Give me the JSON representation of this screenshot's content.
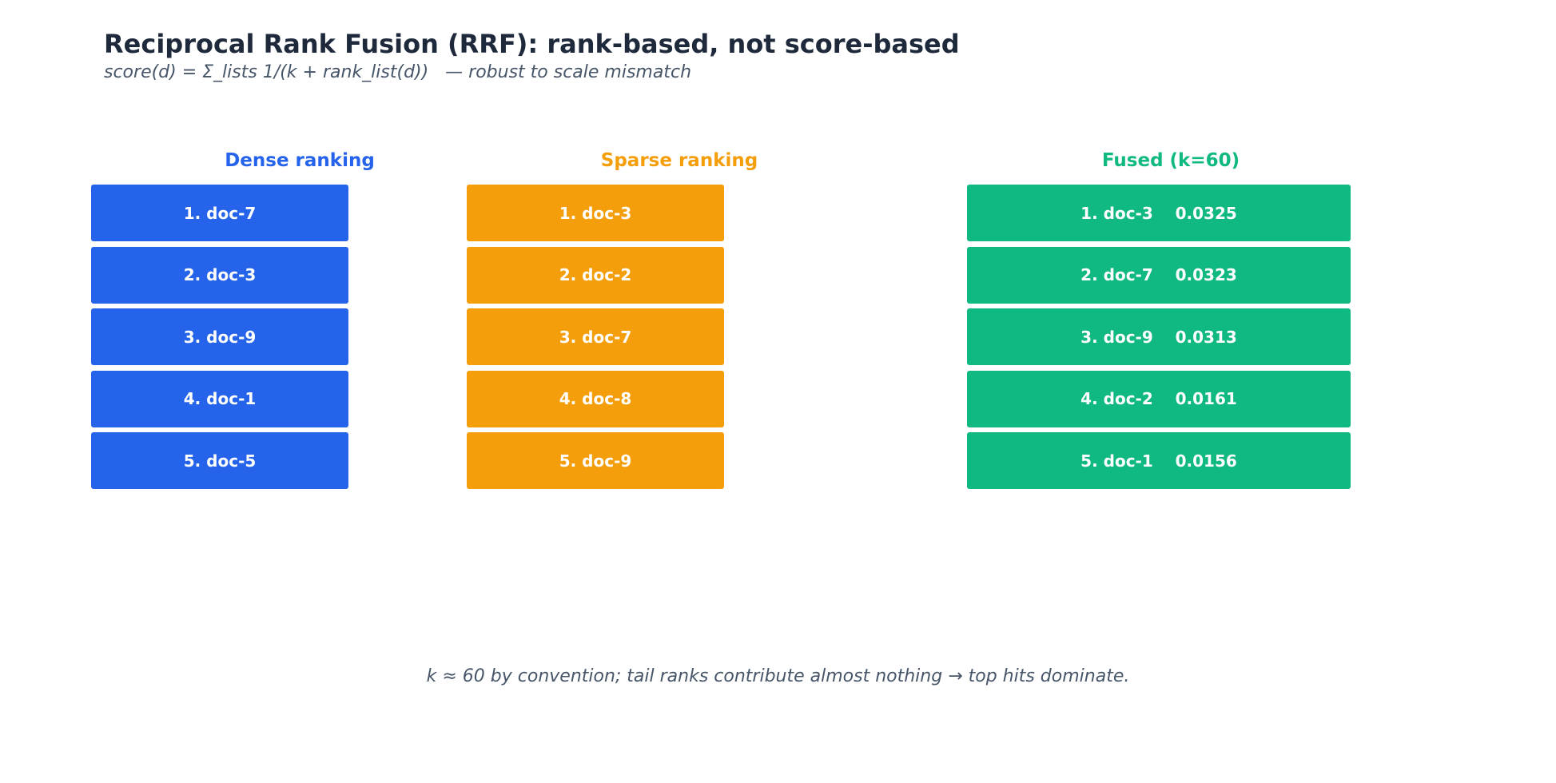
{
  "title": "Reciprocal Rank Fusion (RRF): rank-based, not score-based",
  "subtitle": "score(d) = Σ_lists 1/(k + rank_list(d))   — robust to scale mismatch",
  "columns": {
    "dense": {
      "header": "Dense ranking",
      "color": "#2563eb",
      "items": [
        "1. doc-7",
        "2. doc-3",
        "3. doc-9",
        "4. doc-1",
        "5. doc-5"
      ]
    },
    "sparse": {
      "header": "Sparse ranking",
      "color": "#f59e0b",
      "items": [
        "1. doc-3",
        "2. doc-2",
        "3. doc-7",
        "4. doc-8",
        "5. doc-9"
      ]
    },
    "fused": {
      "header": "Fused (k=60)",
      "color": "#10b981",
      "items": [
        "1. doc-3    0.0325",
        "2. doc-7    0.0323",
        "3. doc-9    0.0313",
        "4. doc-2    0.0161",
        "5. doc-1    0.0156"
      ]
    }
  },
  "footnote": "k ≈ 60 by convention; tail ranks contribute almost nothing → top hits dominate."
}
